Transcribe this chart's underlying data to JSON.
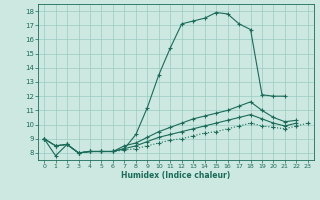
{
  "xlabel": "Humidex (Indice chaleur)",
  "xlim": [
    -0.5,
    23.5
  ],
  "ylim": [
    7.5,
    18.5
  ],
  "yticks": [
    8,
    9,
    10,
    11,
    12,
    13,
    14,
    15,
    16,
    17,
    18
  ],
  "xticks": [
    0,
    1,
    2,
    3,
    4,
    5,
    6,
    7,
    8,
    9,
    10,
    11,
    12,
    13,
    14,
    15,
    16,
    17,
    18,
    19,
    20,
    21,
    22,
    23
  ],
  "background_color": "#cce8e0",
  "grid_color": "#99ccc2",
  "line_color": "#1a6b5a",
  "line1_x": [
    0,
    1,
    2,
    3,
    4,
    5,
    6,
    7,
    8,
    9,
    10,
    11,
    12,
    13,
    14,
    15,
    16,
    17,
    18,
    19,
    20,
    21
  ],
  "line1_y": [
    9.0,
    7.8,
    8.6,
    8.0,
    8.1,
    8.1,
    8.1,
    8.3,
    9.3,
    11.2,
    13.5,
    15.4,
    17.1,
    17.3,
    17.5,
    17.9,
    17.8,
    17.1,
    16.7,
    12.1,
    12.0,
    12.0
  ],
  "line2_x": [
    0,
    1,
    2,
    3,
    4,
    5,
    6,
    7,
    8,
    9,
    10,
    11,
    12,
    13,
    14,
    15,
    16,
    17,
    18,
    19,
    20,
    21,
    22
  ],
  "line2_y": [
    9.0,
    8.5,
    8.6,
    8.0,
    8.1,
    8.1,
    8.1,
    8.5,
    8.7,
    9.1,
    9.5,
    9.8,
    10.1,
    10.4,
    10.6,
    10.8,
    11.0,
    11.3,
    11.6,
    11.0,
    10.5,
    10.2,
    10.3
  ],
  "line3_x": [
    0,
    1,
    2,
    3,
    4,
    5,
    6,
    7,
    8,
    9,
    10,
    11,
    12,
    13,
    14,
    15,
    16,
    17,
    18,
    19,
    20,
    21,
    22
  ],
  "line3_y": [
    9.0,
    8.5,
    8.6,
    8.0,
    8.1,
    8.1,
    8.1,
    8.3,
    8.5,
    8.8,
    9.1,
    9.3,
    9.5,
    9.7,
    9.9,
    10.1,
    10.3,
    10.5,
    10.7,
    10.4,
    10.1,
    9.9,
    10.1
  ],
  "line4_x": [
    0,
    1,
    2,
    3,
    4,
    5,
    6,
    7,
    8,
    9,
    10,
    11,
    12,
    13,
    14,
    15,
    16,
    17,
    18,
    19,
    20,
    21,
    22,
    23
  ],
  "line4_y": [
    9.0,
    8.5,
    8.6,
    8.0,
    8.1,
    8.1,
    8.1,
    8.2,
    8.3,
    8.5,
    8.7,
    8.9,
    9.0,
    9.2,
    9.4,
    9.5,
    9.7,
    9.9,
    10.1,
    9.9,
    9.8,
    9.7,
    9.9,
    10.1
  ],
  "marker": "+",
  "markersize": 3,
  "linewidth": 0.8
}
